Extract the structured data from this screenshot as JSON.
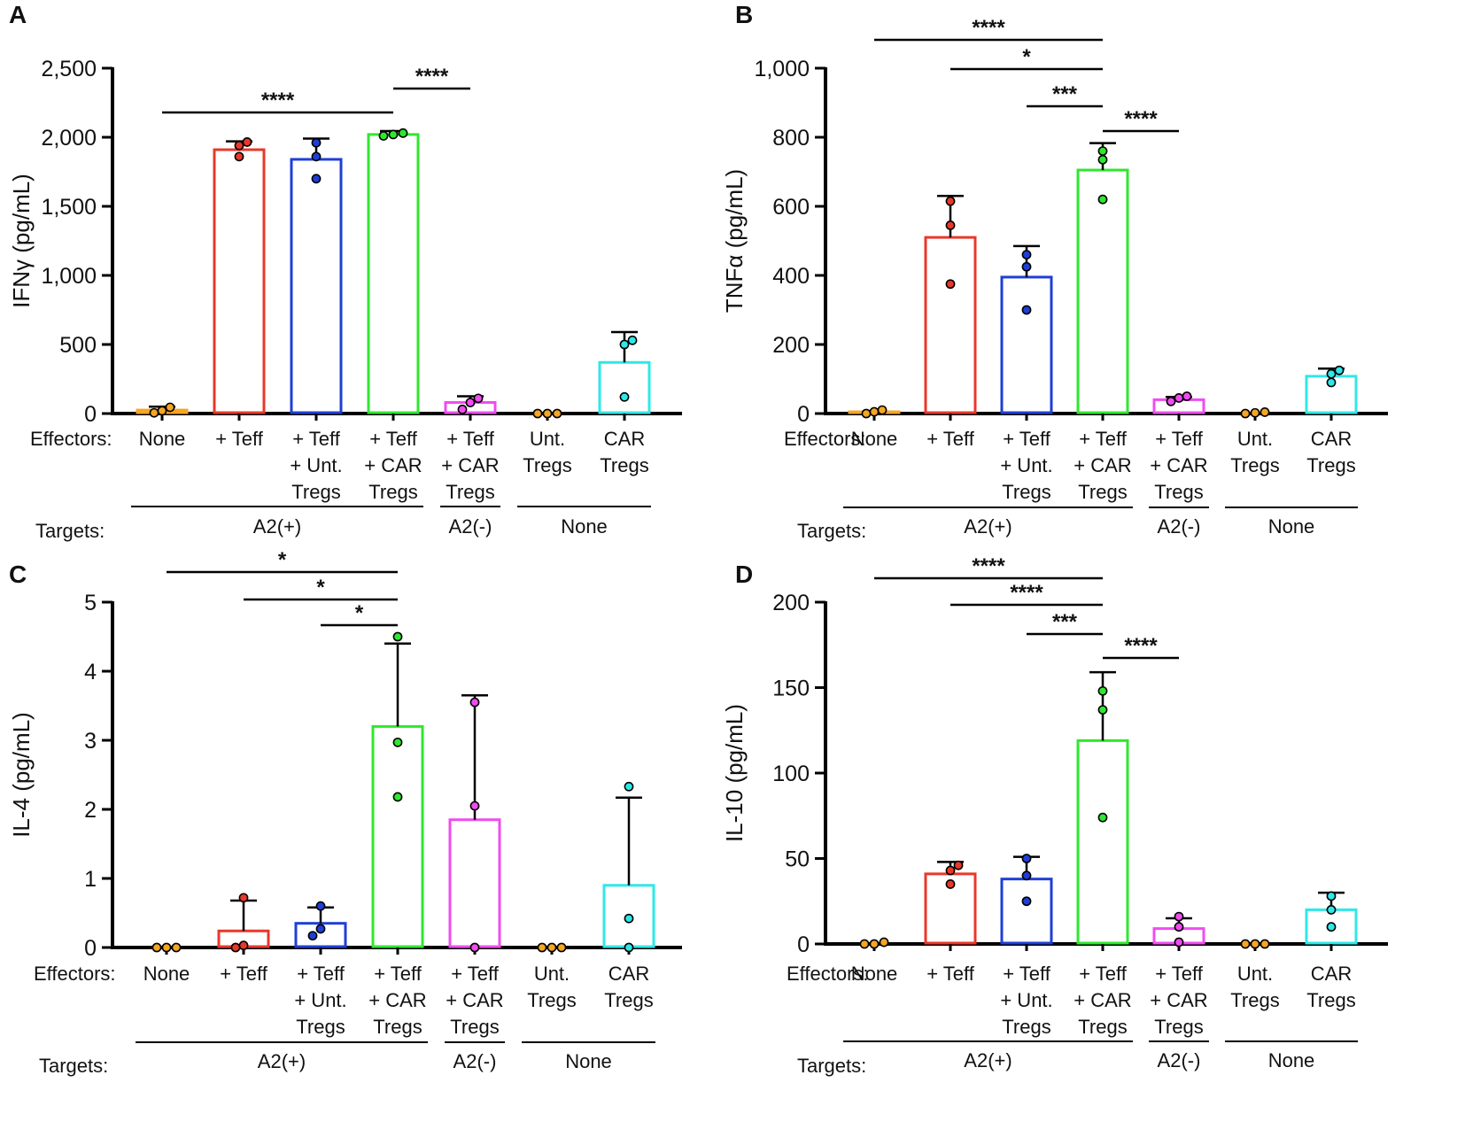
{
  "common": {
    "effectors_label": "Effectors:",
    "targets_label": "Targets:",
    "categories": [
      [
        "None"
      ],
      [
        "+ Teff"
      ],
      [
        "+ Teff",
        "+ Unt.",
        "Tregs"
      ],
      [
        "+ Teff",
        "+ CAR",
        "Tregs"
      ],
      [
        "+ Teff",
        "+ CAR",
        "Tregs"
      ],
      [
        "Unt.",
        "Tregs"
      ],
      [
        "CAR",
        "Tregs"
      ]
    ],
    "target_groups": [
      {
        "label": "A2(+)",
        "from": 0,
        "to": 3
      },
      {
        "label": "A2(-)",
        "from": 4,
        "to": 4
      },
      {
        "label": "None",
        "from": 5,
        "to": 6
      }
    ],
    "colors": [
      "#f5a623",
      "#e8382a",
      "#1e3fd6",
      "#2ee82e",
      "#f04cf0",
      "#f5a623",
      "#2ee8e8"
    ]
  },
  "chart_data": [
    {
      "panel": "A",
      "type": "bar",
      "ylabel": "IFNγ (pg/mL)",
      "ylim": [
        0,
        2500
      ],
      "yticks": [
        0,
        500,
        1000,
        1500,
        2000,
        2500
      ],
      "ytick_labels": [
        "0",
        "500",
        "1,000",
        "1,500",
        "2,000",
        "2,500"
      ],
      "values": [
        25,
        1910,
        1840,
        2020,
        80,
        0,
        370
      ],
      "errors": [
        25,
        60,
        150,
        25,
        45,
        0,
        220
      ],
      "points": [
        [
          5,
          20,
          45
        ],
        [
          1860,
          1940,
          1965
        ],
        [
          1700,
          1860,
          1960
        ],
        [
          2010,
          2020,
          2030
        ],
        [
          30,
          80,
          110
        ],
        [
          0,
          0,
          0
        ],
        [
          120,
          500,
          530
        ]
      ],
      "significance": [
        {
          "from": 0,
          "to": 3,
          "label": "****"
        },
        {
          "from": 3,
          "to": 4,
          "label": "****"
        }
      ]
    },
    {
      "panel": "B",
      "type": "bar",
      "ylabel": "TNFα (pg/mL)",
      "ylim": [
        0,
        1000
      ],
      "yticks": [
        0,
        200,
        400,
        600,
        800,
        1000
      ],
      "ytick_labels": [
        "0",
        "200",
        "400",
        "600",
        "800",
        "1,000"
      ],
      "values": [
        5,
        510,
        395,
        705,
        40,
        2,
        108
      ],
      "errors": [
        0,
        120,
        90,
        78,
        8,
        0,
        22
      ],
      "points": [
        [
          0,
          5,
          10
        ],
        [
          375,
          545,
          615
        ],
        [
          300,
          425,
          460
        ],
        [
          620,
          735,
          760
        ],
        [
          35,
          45,
          50
        ],
        [
          0,
          2,
          4
        ],
        [
          90,
          115,
          125
        ]
      ],
      "significance": [
        {
          "from": 0,
          "to": 3,
          "label": "****"
        },
        {
          "from": 1,
          "to": 3,
          "label": "*"
        },
        {
          "from": 2,
          "to": 3,
          "label": "***"
        },
        {
          "from": 3,
          "to": 4,
          "label": "****"
        }
      ]
    },
    {
      "panel": "C",
      "type": "bar",
      "ylabel": "IL-4 (pg/mL)",
      "ylim": [
        0,
        5
      ],
      "yticks": [
        0,
        1,
        2,
        3,
        4,
        5
      ],
      "ytick_labels": [
        "0",
        "1",
        "2",
        "3",
        "4",
        "5"
      ],
      "values": [
        0,
        0.24,
        0.35,
        3.2,
        1.85,
        0,
        0.9
      ],
      "errors": [
        0,
        0.44,
        0.23,
        1.2,
        1.8,
        0,
        1.27
      ],
      "points": [
        [
          0,
          0,
          0
        ],
        [
          0,
          0.03,
          0.72
        ],
        [
          0.17,
          0.27,
          0.6
        ],
        [
          2.18,
          2.97,
          4.5
        ],
        [
          0,
          2.05,
          3.55
        ],
        [
          0,
          0,
          0
        ],
        [
          0,
          0.42,
          2.33
        ]
      ],
      "significance": [
        {
          "from": 0,
          "to": 3,
          "label": "*"
        },
        {
          "from": 1,
          "to": 3,
          "label": "*"
        },
        {
          "from": 2,
          "to": 3,
          "label": "*"
        }
      ]
    },
    {
      "panel": "D",
      "type": "bar",
      "ylabel": "IL-10 (pg/mL)",
      "ylim": [
        0,
        200
      ],
      "yticks": [
        0,
        50,
        100,
        150,
        200
      ],
      "ytick_labels": [
        "0",
        "50",
        "100",
        "150",
        "200"
      ],
      "values": [
        0,
        41,
        38,
        119,
        9,
        0,
        20
      ],
      "errors": [
        0,
        7,
        13,
        40,
        6,
        0,
        10
      ],
      "points": [
        [
          0,
          0,
          1
        ],
        [
          35,
          43,
          46
        ],
        [
          25,
          40,
          50
        ],
        [
          74,
          137,
          148
        ],
        [
          1,
          10,
          16
        ],
        [
          0,
          0,
          0
        ],
        [
          10,
          20,
          28
        ]
      ],
      "significance": [
        {
          "from": 0,
          "to": 3,
          "label": "****"
        },
        {
          "from": 1,
          "to": 3,
          "label": "****"
        },
        {
          "from": 2,
          "to": 3,
          "label": "***"
        },
        {
          "from": 3,
          "to": 4,
          "label": "****"
        }
      ]
    }
  ]
}
